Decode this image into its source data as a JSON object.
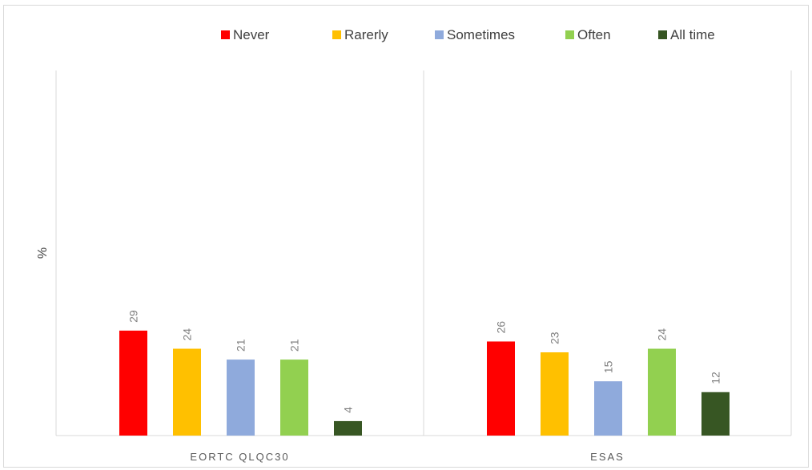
{
  "chart_data": {
    "type": "bar",
    "title": "",
    "xlabel": "",
    "ylabel": "%",
    "ylim": [
      0,
      35
    ],
    "grid": false,
    "legend_position": "top",
    "categories": [
      "EORTC QLQC30",
      "ESAS"
    ],
    "series": [
      {
        "name": "Never",
        "color": "#ff0000",
        "values": [
          29,
          26
        ]
      },
      {
        "name": "Rarerly",
        "color": "#ffc000",
        "values": [
          24,
          23
        ]
      },
      {
        "name": "Sometimes",
        "color": "#8faadc",
        "values": [
          21,
          15
        ]
      },
      {
        "name": "Often",
        "color": "#92d050",
        "values": [
          21,
          24
        ]
      },
      {
        "name": "All time",
        "color": "#375623",
        "values": [
          4,
          12
        ]
      }
    ]
  }
}
